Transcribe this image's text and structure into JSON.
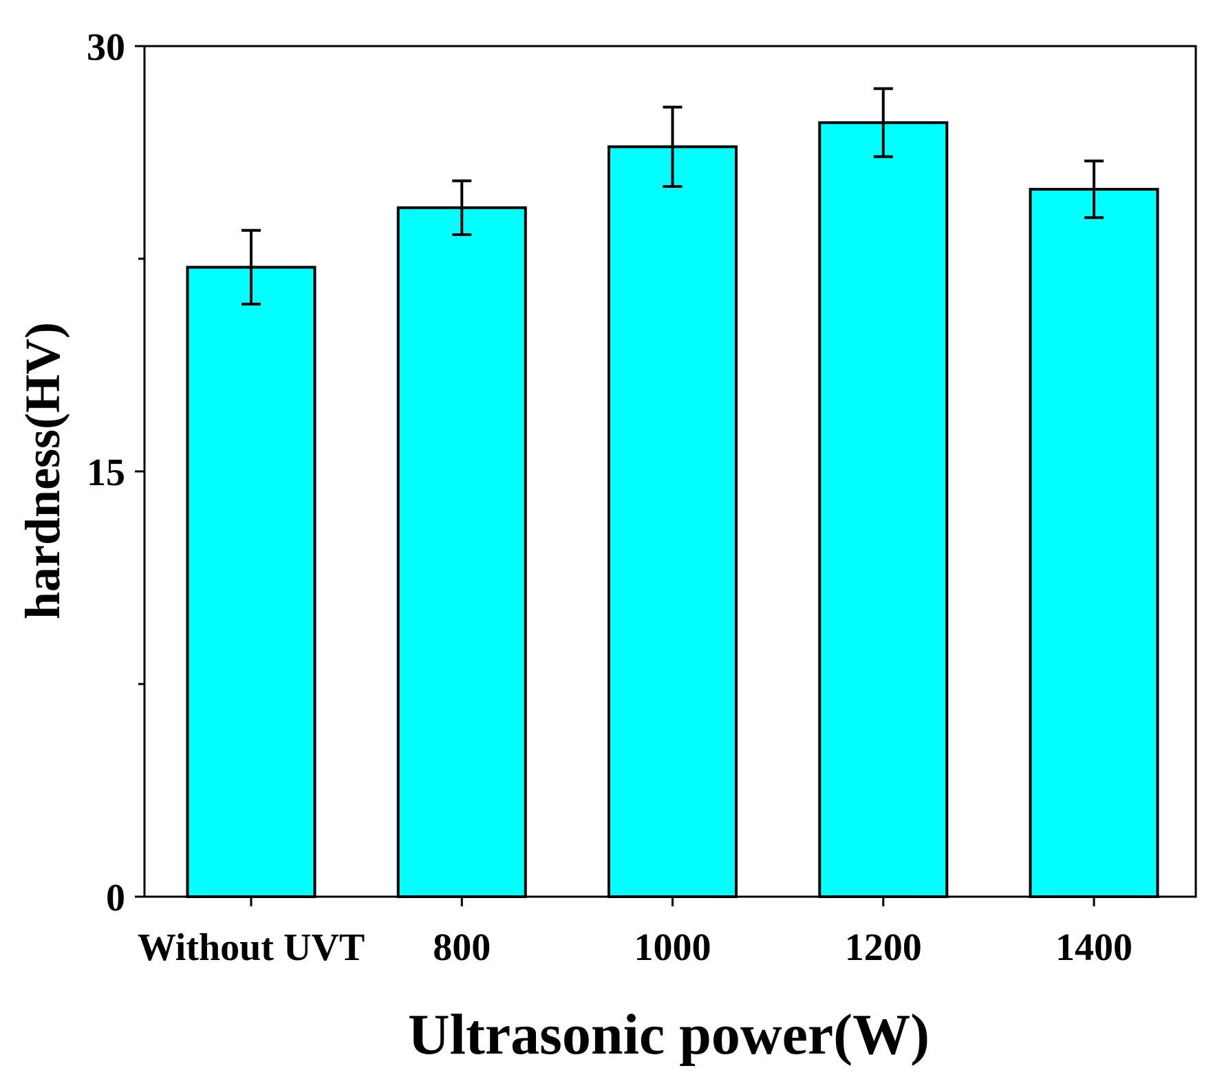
{
  "chart_data": {
    "type": "bar",
    "title": "",
    "xlabel": "Ultrasonic power(W)",
    "ylabel": "hardness(HV)",
    "ylim": [
      0,
      30
    ],
    "yticks": [
      0,
      15,
      30
    ],
    "ytick_labels": [
      "0",
      "15",
      "30"
    ],
    "y_minor_ticks": [
      7.5,
      22.5
    ],
    "categories": [
      "Without UVT",
      "800",
      "1000",
      "1200",
      "1400"
    ],
    "values": [
      22.2,
      24.3,
      26.45,
      27.3,
      24.95
    ],
    "errors": [
      1.3,
      0.95,
      1.4,
      1.2,
      1.0
    ],
    "grid": false,
    "legend": "none"
  },
  "colors": {
    "bar_fill": "#00FFFF",
    "bar_edge": "#000000",
    "axis": "#000000",
    "background": "#FFFFFF"
  }
}
